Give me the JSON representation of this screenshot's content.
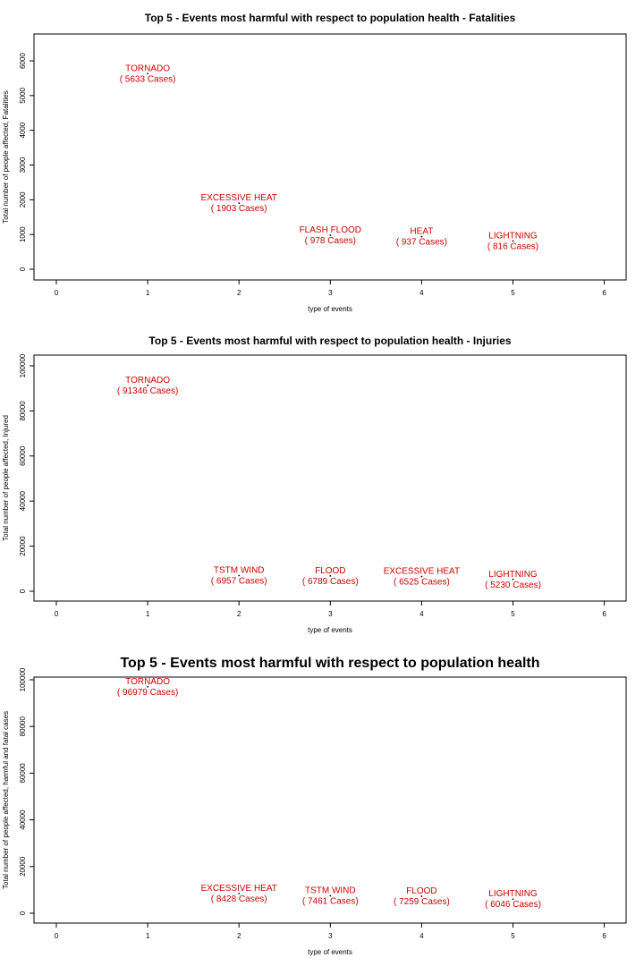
{
  "chart_data": [
    {
      "type": "scatter",
      "title": "Top 5 - Events most harmful with respect to population health - Fatalities",
      "xlabel": "type of events",
      "ylabel": "Total number of people affected, Fatalities",
      "xlim": [
        0,
        6
      ],
      "ylim": [
        0,
        6000
      ],
      "xticks": [
        "0",
        "1",
        "2",
        "3",
        "4",
        "5",
        "6"
      ],
      "yticks": [
        "0",
        "1000",
        "2000",
        "3000",
        "4000",
        "5000",
        "6000"
      ],
      "grid": false,
      "points": [
        {
          "x": 1,
          "y": 5633,
          "label": "TORNADO",
          "cases": "( 5633  Cases)"
        },
        {
          "x": 2,
          "y": 1903,
          "label": "EXCESSIVE HEAT",
          "cases": "( 1903  Cases)"
        },
        {
          "x": 3,
          "y": 978,
          "label": "FLASH FLOOD",
          "cases": "( 978  Cases)"
        },
        {
          "x": 4,
          "y": 937,
          "label": "HEAT",
          "cases": "( 937  Cases)"
        },
        {
          "x": 5,
          "y": 816,
          "label": "LIGHTNING",
          "cases": "( 816  Cases)"
        }
      ]
    },
    {
      "type": "scatter",
      "title": "Top 5 - Events most harmful with respect to population health - Injuries",
      "xlabel": "type of events",
      "ylabel": "Total number of people affected, Injured",
      "xlim": [
        0,
        6
      ],
      "ylim": [
        0,
        100000
      ],
      "xticks": [
        "0",
        "1",
        "2",
        "3",
        "4",
        "5",
        "6"
      ],
      "yticks": [
        "0",
        "20000",
        "40000",
        "60000",
        "80000",
        "100000"
      ],
      "grid": false,
      "points": [
        {
          "x": 1,
          "y": 91346,
          "label": "TORNADO",
          "cases": "( 91346  Cases)"
        },
        {
          "x": 2,
          "y": 6957,
          "label": "TSTM WIND",
          "cases": "( 6957  Cases)"
        },
        {
          "x": 3,
          "y": 6789,
          "label": "FLOOD",
          "cases": "( 6789  Cases)"
        },
        {
          "x": 4,
          "y": 6525,
          "label": "EXCESSIVE HEAT",
          "cases": "( 6525  Cases)"
        },
        {
          "x": 5,
          "y": 5230,
          "label": "LIGHTNING",
          "cases": "( 5230  Cases)"
        }
      ]
    },
    {
      "type": "scatter",
      "title": "Top 5 - Events most harmful with respect to population health",
      "xlabel": "type of events",
      "ylabel": "Total number of people affected, harmful and fatal cases",
      "xlim": [
        0,
        6
      ],
      "ylim": [
        0,
        100000
      ],
      "xticks": [
        "0",
        "1",
        "2",
        "3",
        "4",
        "5",
        "6"
      ],
      "yticks": [
        "0",
        "20000",
        "40000",
        "60000",
        "80000",
        "100000"
      ],
      "grid": false,
      "points": [
        {
          "x": 1,
          "y": 96979,
          "label": "TORNADO",
          "cases": "( 96979  Cases)"
        },
        {
          "x": 2,
          "y": 8428,
          "label": "EXCESSIVE HEAT",
          "cases": "( 8428  Cases)"
        },
        {
          "x": 3,
          "y": 7461,
          "label": "TSTM WIND",
          "cases": "( 7461  Cases)"
        },
        {
          "x": 4,
          "y": 7259,
          "label": "FLOOD",
          "cases": "( 7259  Cases)"
        },
        {
          "x": 5,
          "y": 6046,
          "label": "LIGHTNING",
          "cases": "( 6046  Cases)"
        }
      ]
    }
  ]
}
